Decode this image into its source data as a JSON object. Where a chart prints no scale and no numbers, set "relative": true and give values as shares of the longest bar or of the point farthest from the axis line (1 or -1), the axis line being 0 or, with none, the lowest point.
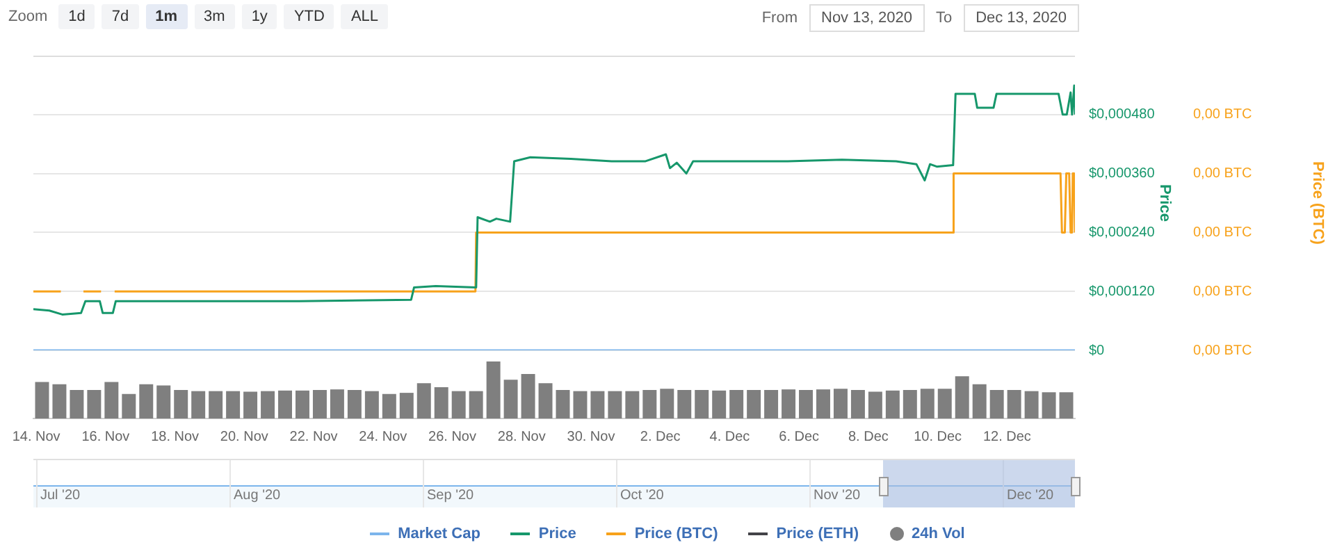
{
  "chart_data": [
    {
      "type": "line",
      "annotations": [
        "Zoom",
        "1d",
        "7d",
        "1m",
        "3m",
        "1y",
        "YTD",
        "ALL",
        "From",
        "Nov 13, 2020",
        "To",
        "Dec 13, 2020"
      ],
      "ylabel": "Price",
      "y2label": "Price (BTC)",
      "xlim": [
        "2020-11-13T22:00",
        "2020-12-13T23:00"
      ],
      "xticks": [
        {
          "value": "2020-11-14",
          "label": "14. Nov"
        },
        {
          "value": "2020-11-16",
          "label": "16. Nov"
        },
        {
          "value": "2020-11-18",
          "label": "18. Nov"
        },
        {
          "value": "2020-11-20",
          "label": "20. Nov"
        },
        {
          "value": "2020-11-22",
          "label": "22. Nov"
        },
        {
          "value": "2020-11-24",
          "label": "24. Nov"
        },
        {
          "value": "2020-11-26",
          "label": "26. Nov"
        },
        {
          "value": "2020-11-28",
          "label": "28. Nov"
        },
        {
          "value": "2020-11-30",
          "label": "30. Nov"
        },
        {
          "value": "2020-12-02",
          "label": "2. Dec"
        },
        {
          "value": "2020-12-04",
          "label": "4. Dec"
        },
        {
          "value": "2020-12-06",
          "label": "6. Dec"
        },
        {
          "value": "2020-12-08",
          "label": "8. Dec"
        },
        {
          "value": "2020-12-10",
          "label": "10. Dec"
        },
        {
          "value": "2020-12-12",
          "label": "12. Dec"
        }
      ],
      "ylim": [
        0,
        0.0006
      ],
      "yticks": [
        {
          "value": 0,
          "label": "$0"
        },
        {
          "value": 0.00012,
          "label": "$0,000120"
        },
        {
          "value": 0.00024,
          "label": "$0,000240"
        },
        {
          "value": 0.00036,
          "label": "$0,000360"
        },
        {
          "value": 0.00048,
          "label": "$0,000480"
        },
        {
          "value": 0.0006,
          "label": null
        }
      ],
      "y2lim": [
        0,
        5e-08
      ],
      "y2ticks": [
        {
          "value": 0,
          "label": "0,00 BTC"
        },
        {
          "value": 1e-08,
          "label": "0,00 BTC"
        },
        {
          "value": 2e-08,
          "label": "0,00 BTC"
        },
        {
          "value": 3e-08,
          "label": "0,00 BTC"
        },
        {
          "value": 4e-08,
          "label": "0,00 BTC"
        },
        {
          "value": 5e-08,
          "label": null
        }
      ],
      "grid": "y",
      "legend": "bottom",
      "marker": "none",
      "series": [
        {
          "name": "Market Cap",
          "color": "#7cb5ec",
          "x": [
            "2020-11-13T22:00",
            "2020-12-13T23:00"
          ],
          "values": [
            0,
            0
          ]
        },
        {
          "name": "Price",
          "color": "#16976b",
          "x": [
            "2020-11-13T22:00",
            "2020-11-14T09:00",
            "2020-11-14T18:00",
            "2020-11-15T07:00",
            "2020-11-15T10:00",
            "2020-11-15T20:00",
            "2020-11-15T22:00",
            "2020-11-16T05:00",
            "2020-11-16T07:00",
            "2020-11-17T17:00",
            "2020-11-21T14:00",
            "2020-11-24T19:30",
            "2020-11-24T21:30",
            "2020-11-25T12:30",
            "2020-11-26T16:30",
            "2020-11-26T17:30",
            "2020-11-27T02:00",
            "2020-11-27T06:30",
            "2020-11-27T16:00",
            "2020-11-27T18:50",
            "2020-11-28T06:00",
            "2020-11-29T10:00",
            "2020-11-30T14:20",
            "2020-12-01T13:45",
            "2020-12-02T03:50",
            "2020-12-02T06:40",
            "2020-12-02T11:20",
            "2020-12-02T18:00",
            "2020-12-02T22:40",
            "2020-12-04T02:40",
            "2020-12-05T16:10",
            "2020-12-07T05:40",
            "2020-12-08T19:10",
            "2020-12-09T09:15",
            "2020-12-09T15:00",
            "2020-12-09T18:40",
            "2020-12-09T23:20",
            "2020-12-10T10:40",
            "2020-12-10T12:20",
            "2020-12-11T01:40",
            "2020-12-11T03:20",
            "2020-12-11T14:40",
            "2020-12-11T16:40",
            "2020-12-13T11:40",
            "2020-12-13T14:30",
            "2020-12-13T17:20",
            "2020-12-13T20:00",
            "2020-12-13T21:00",
            "2020-12-13T22:30",
            "2020-12-13T23:00"
          ],
          "values": [
            8.4e-05,
            8.1e-05,
            7.3e-05,
            7.6e-05,
            0.0001,
            0.0001,
            7.6e-05,
            7.6e-05,
            0.0001,
            0.0001,
            0.0001,
            0.000103,
            0.000128,
            0.000131,
            0.000128,
            0.000271,
            0.000262,
            0.000268,
            0.000262,
            0.000385,
            0.000393,
            0.00039,
            0.000385,
            0.000385,
            0.000399,
            0.000371,
            0.000382,
            0.00036,
            0.000385,
            0.000385,
            0.000385,
            0.000388,
            0.000385,
            0.000379,
            0.000346,
            0.000379,
            0.000374,
            0.000377,
            0.000522,
            0.000522,
            0.000494,
            0.000494,
            0.000522,
            0.000522,
            0.00048,
            0.00048,
            0.000525,
            0.00048,
            0.000539,
            0.00048
          ]
        },
        {
          "name": "Price (BTC)",
          "color": "#f7a21b",
          "axis": "y2",
          "x": [
            "2020-11-13T22:00",
            "2020-11-14T17:00",
            "2020-11-15T00:00",
            "2020-11-15T08:40",
            "2020-11-15T20:50",
            "2020-11-16T00:00",
            "2020-11-16T06:15",
            "2020-11-26T16:00",
            "2020-11-26T16:30",
            "2020-12-10T10:30",
            "2020-12-10T11:00",
            "2020-12-13T13:00",
            "2020-12-13T14:00",
            "2020-12-13T16:00",
            "2020-12-13T17:00",
            "2020-12-13T19:00",
            "2020-12-13T20:00",
            "2020-12-13T21:00",
            "2020-12-13T21:30",
            "2020-12-13T22:30",
            "2020-12-13T23:00"
          ],
          "values": [
            1e-08,
            1e-08,
            null,
            1e-08,
            1e-08,
            null,
            1e-08,
            1e-08,
            2e-08,
            2e-08,
            3e-08,
            3e-08,
            2e-08,
            2e-08,
            3e-08,
            3e-08,
            2e-08,
            2e-08,
            3e-08,
            3e-08,
            2e-08
          ]
        },
        {
          "name": "Price (ETH)",
          "color": "#434348"
        }
      ]
    },
    {
      "type": "bar",
      "relative": true,
      "legend": "bottom",
      "categories": [
        null,
        null,
        null,
        null,
        null,
        null,
        null,
        null,
        null,
        null,
        null,
        null,
        null,
        null,
        null,
        null,
        null,
        null,
        null,
        null,
        null,
        null,
        null,
        null,
        null,
        null,
        null,
        null,
        null,
        null,
        null,
        null,
        null,
        null,
        null,
        null,
        null,
        null,
        null,
        null,
        null,
        null,
        null,
        null,
        null,
        null,
        null,
        null,
        null,
        null,
        null,
        null,
        null,
        null,
        null,
        null,
        null,
        null,
        null,
        null
      ],
      "series": [
        {
          "name": "24h Vol",
          "color": "#7f7f7f",
          "values": [
            0.64,
            0.6,
            0.5,
            0.5,
            0.64,
            0.43,
            0.6,
            0.58,
            0.5,
            0.48,
            0.48,
            0.48,
            0.47,
            0.48,
            0.49,
            0.49,
            0.5,
            0.51,
            0.5,
            0.48,
            0.43,
            0.45,
            0.62,
            0.55,
            0.48,
            0.48,
            1.0,
            0.68,
            0.78,
            0.62,
            0.5,
            0.48,
            0.48,
            0.48,
            0.48,
            0.5,
            0.52,
            0.5,
            0.5,
            0.49,
            0.5,
            0.5,
            0.5,
            0.51,
            0.5,
            0.51,
            0.52,
            0.5,
            0.47,
            0.49,
            0.5,
            0.52,
            0.52,
            0.74,
            0.6,
            0.5,
            0.5,
            0.48,
            0.46,
            0.46
          ]
        }
      ]
    },
    {
      "type": "other",
      "annotations": [
        "Jul '20",
        "Aug '20",
        "Sep '20",
        "Oct '20",
        "Nov '20",
        "Dec '20"
      ]
    }
  ]
}
